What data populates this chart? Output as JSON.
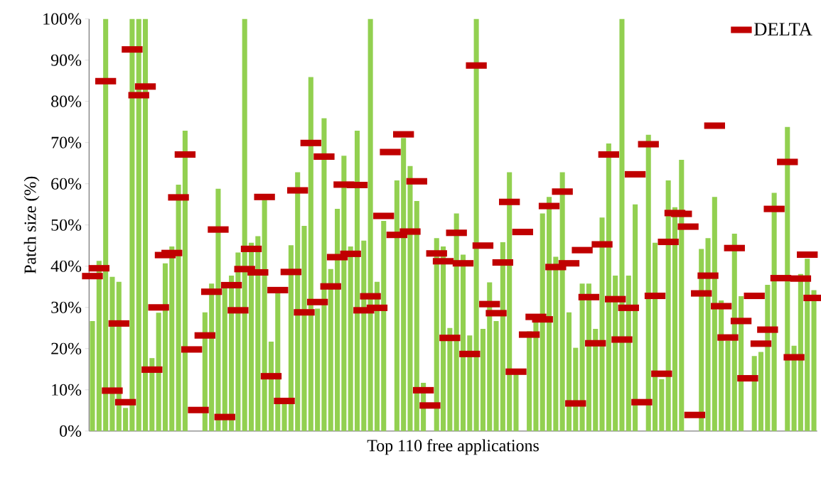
{
  "chart_data": {
    "type": "bar",
    "ylabel": "Patch size (%)",
    "xlabel": "Top 110 free applications",
    "categories": [
      null,
      null,
      null,
      null,
      null,
      null,
      null,
      null,
      null,
      null,
      null,
      null,
      null,
      null,
      null,
      null,
      null,
      null,
      null,
      null,
      null,
      null,
      null,
      null,
      null,
      null,
      null,
      null,
      null,
      null,
      null,
      null,
      null,
      null,
      null,
      null,
      null,
      null,
      null,
      null,
      null,
      null,
      null,
      null,
      null,
      null,
      null,
      null,
      null,
      null,
      null,
      null,
      null,
      null,
      null,
      null,
      null,
      null,
      null,
      null,
      null,
      null,
      null,
      null,
      null,
      null,
      null,
      null,
      null,
      null,
      null,
      null,
      null,
      null,
      null,
      null,
      null,
      null,
      null,
      null,
      null,
      null,
      null,
      null,
      null,
      null,
      null,
      null,
      null,
      null,
      null,
      null,
      null,
      null,
      null,
      null,
      null,
      null,
      null,
      null,
      null,
      null,
      null,
      null,
      null,
      null,
      null,
      null,
      null,
      null
    ],
    "ylim": [
      0,
      100
    ],
    "yticks": [
      {
        "value": 0,
        "label": "0%"
      },
      {
        "value": 10,
        "label": "10%"
      },
      {
        "value": 20,
        "label": "20%"
      },
      {
        "value": 30,
        "label": "30%"
      },
      {
        "value": 40,
        "label": "40%"
      },
      {
        "value": 50,
        "label": "50%"
      },
      {
        "value": 60,
        "label": "60%"
      },
      {
        "value": 70,
        "label": "70%"
      },
      {
        "value": 80,
        "label": "80%"
      },
      {
        "value": 90,
        "label": "90%"
      },
      {
        "value": 100,
        "label": "100%"
      }
    ],
    "legend": "top right",
    "series": [
      {
        "color": "#92d050",
        "values": [
          26.7,
          41.3,
          100,
          37.4,
          36.2,
          5.6,
          100,
          100,
          100,
          17.7,
          28.7,
          40.7,
          44.8,
          59.8,
          72.9,
          null,
          null,
          28.8,
          35.8,
          58.8,
          34.7,
          37.7,
          43.3,
          100,
          45.7,
          47.3,
          56.1,
          21.7,
          33.4,
          7,
          45.1,
          62.8,
          49.8,
          85.9,
          29.7,
          75.9,
          39.3,
          53.9,
          66.8,
          44.8,
          72.9,
          46.2,
          100,
          36.2,
          51,
          null,
          60.8,
          71.1,
          64.3,
          55.8,
          11.7,
          null,
          46.8,
          44.8,
          25,
          52.8,
          42.8,
          23.2,
          100,
          24.8,
          36.1,
          26.7,
          45.8,
          62.8,
          14,
          null,
          24.2,
          26.5,
          52.8,
          56.8,
          42.3,
          62.8,
          28.8,
          20.2,
          35.8,
          35.8,
          24.8,
          51.8,
          69.8,
          37.7,
          100,
          37.7,
          55,
          null,
          71.9,
          45.7,
          12.6,
          60.8,
          54.3,
          65.8,
          null,
          null,
          44.2,
          46.8,
          56.8,
          31.7,
          21.9,
          47.9,
          32.7,
          null,
          18.2,
          19.2,
          35.5,
          57.8,
          null,
          73.8,
          20.7,
          38.1,
          41.8,
          34.2
        ]
      },
      {
        "type": "scatter",
        "name": "DELTA",
        "color": "#c00000",
        "values": [
          37.6,
          39.5,
          84.9,
          9.8,
          26.1,
          7,
          92.6,
          81.5,
          83.6,
          14.9,
          30,
          42.7,
          43.2,
          56.7,
          67.1,
          19.8,
          5.1,
          23.2,
          33.8,
          48.9,
          3.4,
          35.4,
          29.3,
          39.3,
          44.2,
          38.5,
          56.8,
          13.3,
          34.2,
          7.3,
          38.6,
          58.4,
          28.8,
          69.9,
          31.3,
          66.6,
          35.1,
          42.2,
          59.8,
          43,
          59.7,
          29.3,
          32.7,
          29.9,
          52.2,
          67.7,
          47.6,
          72,
          48.4,
          60.6,
          9.9,
          6.2,
          43.1,
          41.2,
          22.6,
          48.1,
          40.7,
          18.7,
          88.7,
          45,
          30.8,
          28.6,
          40.9,
          55.6,
          14.4,
          48.3,
          23.4,
          27.7,
          27.1,
          54.6,
          39.8,
          58.1,
          40.7,
          6.7,
          43.9,
          32.5,
          21.3,
          45.3,
          67.1,
          32,
          22.2,
          29.9,
          62.3,
          7,
          69.6,
          32.8,
          13.9,
          45.9,
          52.9,
          52.7,
          49.6,
          3.9,
          33.4,
          37.7,
          74.1,
          30.3,
          22.7,
          44.4,
          26.7,
          12.8,
          32.8,
          21.2,
          24.6,
          53.9,
          37.1,
          65.3,
          17.9,
          37,
          42.8,
          32.3
        ]
      }
    ]
  }
}
